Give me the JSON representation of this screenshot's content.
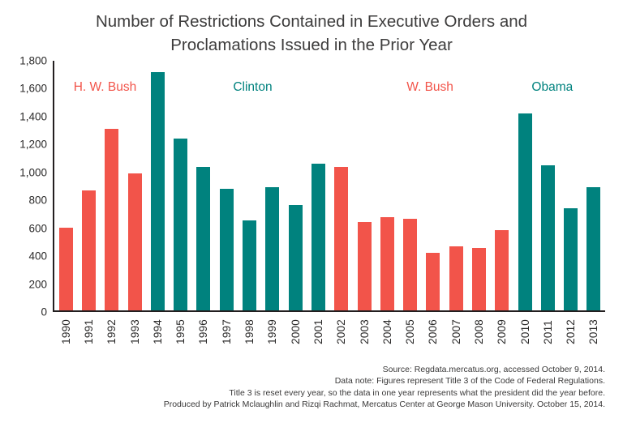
{
  "title": {
    "line1": "Number of Restrictions Contained in Executive Orders and",
    "line2": "Proclamations Issued in the Prior Year"
  },
  "colors": {
    "republican": "#f2544a",
    "democrat": "#00827e",
    "axis": "#231f20",
    "title_text": "#3d3c3c"
  },
  "chart_data": {
    "type": "bar",
    "title": "Number of Restrictions Contained in Executive Orders and Proclamations Issued in the Prior Year",
    "xlabel": "",
    "ylabel": "",
    "ylim": [
      0,
      1800
    ],
    "ytick_interval": 200,
    "grid": false,
    "legend": "none",
    "categories": [
      "1990",
      "1991",
      "1992",
      "1993",
      "1994",
      "1995",
      "1996",
      "1997",
      "1998",
      "1999",
      "2000",
      "2001",
      "2002",
      "2003",
      "2004",
      "2005",
      "2006",
      "2007",
      "2008",
      "2009",
      "2010",
      "2011",
      "2012",
      "2013"
    ],
    "values": [
      590,
      860,
      1300,
      980,
      1710,
      1230,
      1030,
      870,
      645,
      885,
      755,
      1050,
      1025,
      635,
      670,
      655,
      415,
      460,
      450,
      575,
      1410,
      1040,
      730,
      885
    ],
    "parties": [
      "R",
      "R",
      "R",
      "R",
      "D",
      "D",
      "D",
      "D",
      "D",
      "D",
      "D",
      "D",
      "R",
      "R",
      "R",
      "R",
      "R",
      "R",
      "R",
      "R",
      "D",
      "D",
      "D",
      "D"
    ],
    "annotations": [
      {
        "label": "H. W. Bush",
        "party": "R",
        "left_pct": 9.2
      },
      {
        "label": "Clinton",
        "party": "D",
        "left_pct": 36.0
      },
      {
        "label": "W. Bush",
        "party": "R",
        "left_pct": 68.2
      },
      {
        "label": "Obama",
        "party": "D",
        "left_pct": 90.4
      }
    ]
  },
  "footer": {
    "lines": [
      "Source: Regdata.mercatus.org, accessed October 9, 2014.",
      "Data note: Figures represent Title 3 of the Code of Federal Regulations.",
      "Title 3 is reset every year, so the data in one year represents what the president did the year before.",
      "Produced by Patrick Mclaughlin and Rizqi Rachmat, Mercatus Center at George Mason University. October 15, 2014."
    ]
  }
}
